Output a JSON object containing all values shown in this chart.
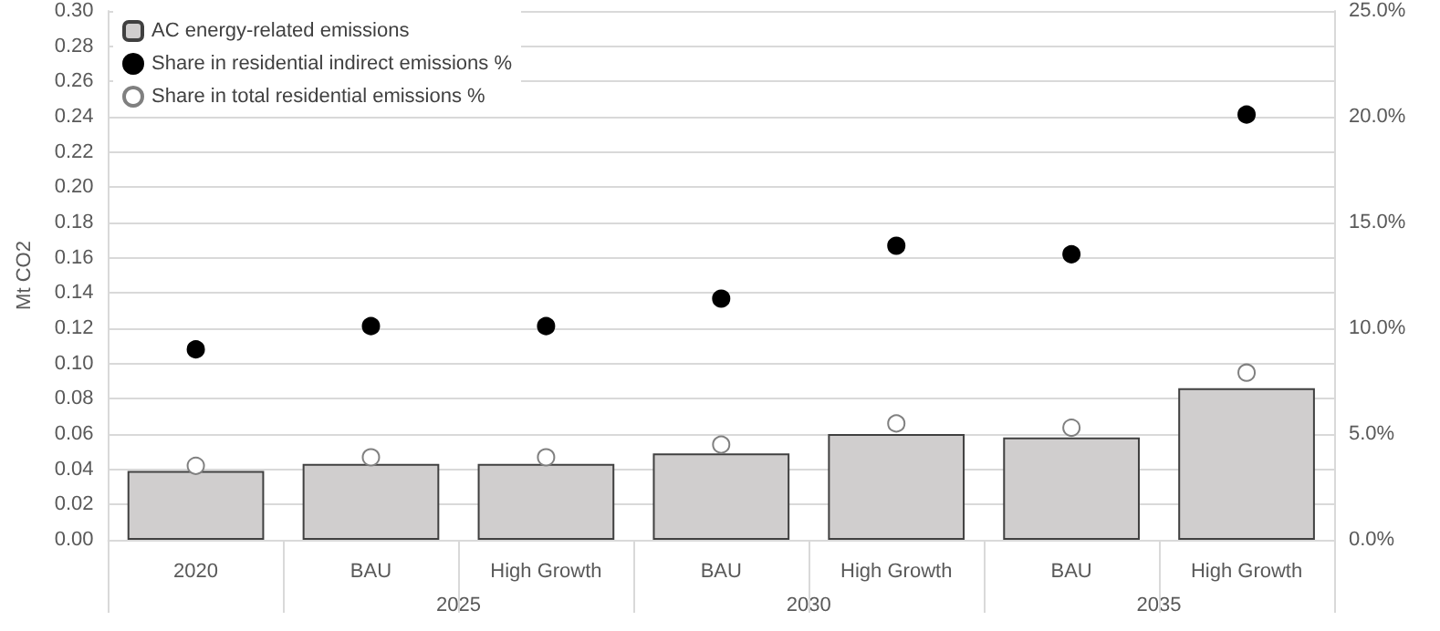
{
  "chart_data": {
    "type": "bar",
    "ylabel": "Mt CO2",
    "categories": [
      "2020",
      "BAU",
      "High Growth",
      "BAU",
      "High Growth",
      "BAU",
      "High Growth"
    ],
    "series": [
      {
        "name": "AC energy-related emissions",
        "color": "#d0cece",
        "values": [
          0.039,
          0.043,
          0.043,
          0.049,
          0.06,
          0.058,
          0.086
        ]
      },
      {
        "name": "Share in residential indirect emissions %",
        "type": "scatter",
        "axis": "y2",
        "color": "#000000",
        "values": [
          9.0,
          10.1,
          10.1,
          11.4,
          13.9,
          13.5,
          20.1
        ]
      },
      {
        "name": "Share in total residential emissions %",
        "type": "scatter",
        "axis": "y2",
        "color": "#ffffff",
        "values": [
          3.5,
          3.9,
          3.9,
          4.5,
          5.5,
          5.3,
          7.9
        ]
      }
    ],
    "annotations": [
      "2025",
      "2030",
      "2035"
    ],
    "ylim": [
      0,
      0.3
    ],
    "yticks": [
      {
        "value": 0,
        "label": "0.00"
      },
      {
        "value": 0.02,
        "label": "0.02"
      },
      {
        "value": 0.04,
        "label": "0.04"
      },
      {
        "value": 0.06,
        "label": "0.06"
      },
      {
        "value": 0.08,
        "label": "0.08"
      },
      {
        "value": 0.1,
        "label": "0.10"
      },
      {
        "value": 0.12,
        "label": "0.12"
      },
      {
        "value": 0.14,
        "label": "0.14"
      },
      {
        "value": 0.16,
        "label": "0.16"
      },
      {
        "value": 0.18,
        "label": "0.18"
      },
      {
        "value": 0.2,
        "label": "0.20"
      },
      {
        "value": 0.22,
        "label": "0.22"
      },
      {
        "value": 0.24,
        "label": "0.24"
      },
      {
        "value": 0.26,
        "label": "0.26"
      },
      {
        "value": 0.28,
        "label": "0.28"
      },
      {
        "value": 0.3,
        "label": "0.30"
      }
    ],
    "y2lim": [
      0,
      25
    ],
    "y2ticks": [
      {
        "value": 0,
        "label": "0.0%"
      },
      {
        "value": 5,
        "label": "5.0%"
      },
      {
        "value": 10,
        "label": "10.0%"
      },
      {
        "value": 15,
        "label": "15.0%"
      },
      {
        "value": 20,
        "label": "20.0%"
      },
      {
        "value": 25,
        "label": "25.0%"
      }
    ],
    "grid": "y",
    "legend": "top left",
    "marker": "circle"
  }
}
